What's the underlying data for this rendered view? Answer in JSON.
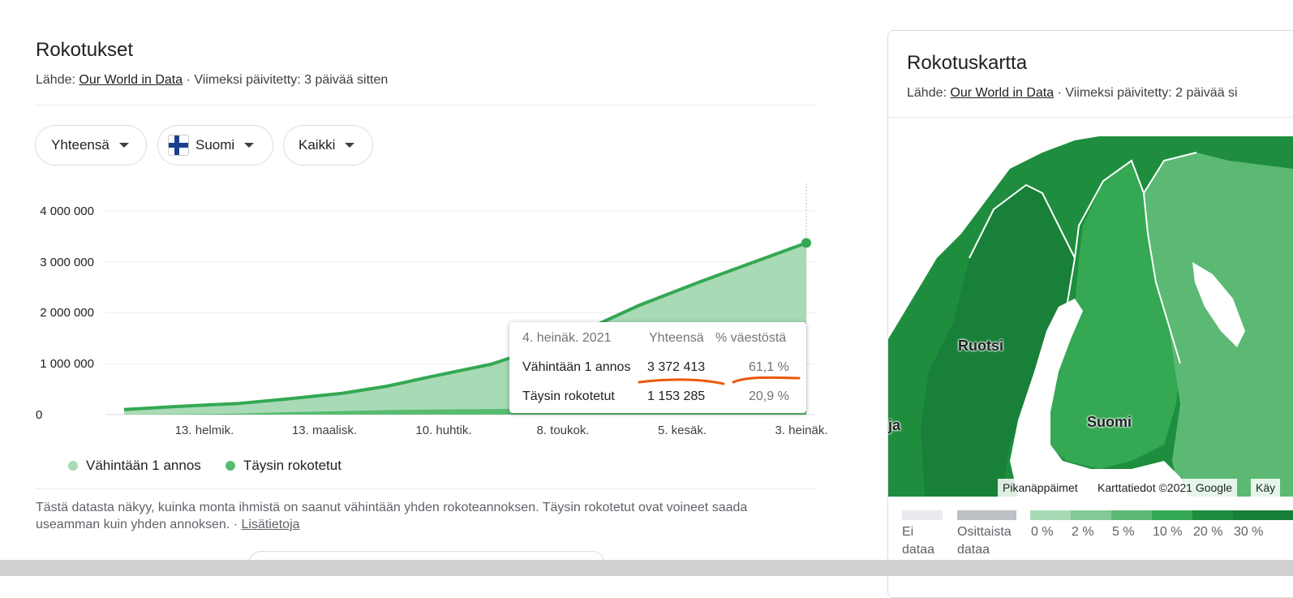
{
  "vaccinations": {
    "title": "Rokotukset",
    "source_prefix": "Lähde: ",
    "source_link": "Our World in Data",
    "updated": " · Viimeksi päivitetty: 3 päivää sitten",
    "filters": {
      "metric": "Yhteensä",
      "country": "Suomi",
      "group": "Kaikki"
    },
    "legend": {
      "series1": "Vähintään 1 annos",
      "series2": "Täysin rokotetut"
    },
    "tooltip": {
      "date": "4. heinäk. 2021",
      "col_total": "Yhteensä",
      "col_pct": "% väestöstä",
      "row1_label": "Vähintään 1 annos",
      "row1_total": "3 372 413",
      "row1_pct": "61,1 %",
      "row2_label": "Täysin rokotetut",
      "row2_total": "1 153 285",
      "row2_pct": "20,9 %"
    },
    "description": "Tästä datasta näkyy, kuinka monta ihmistä on saanut vähintään yhden rokoteannoksen. Täysin rokotetut ovat voineet saada useamman kuin yhden annoksen.",
    "desc_sep": " · ",
    "more_link": "Lisätietoja"
  },
  "chart_data": {
    "type": "area",
    "y_ticks": [
      "4 000 000",
      "3 000 000",
      "2 000 000",
      "1 000 000",
      "0"
    ],
    "x_ticks": [
      "13. helmik.",
      "13. maalisk.",
      "10. huhtik.",
      "8. toukok.",
      "5. kesäk.",
      "3. heinäk."
    ],
    "ylim": [
      0,
      4000000
    ],
    "x": [
      "2021-01-01",
      "2021-01-15",
      "2021-02-01",
      "2021-02-13",
      "2021-03-01",
      "2021-03-13",
      "2021-03-25",
      "2021-04-10",
      "2021-04-25",
      "2021-05-08",
      "2021-05-20",
      "2021-06-05",
      "2021-06-20",
      "2021-07-04"
    ],
    "series": [
      {
        "name": "Vähintään 1 annos",
        "color": "#a8dab5",
        "values": [
          100000,
          160000,
          220000,
          300000,
          420000,
          560000,
          750000,
          990000,
          1350000,
          1750000,
          2150000,
          2600000,
          3000000,
          3372413
        ]
      },
      {
        "name": "Täysin rokotetut",
        "color": "#57bb70",
        "values": [
          0,
          5000,
          20000,
          45000,
          70000,
          90000,
          100000,
          110000,
          120000,
          145000,
          190000,
          330000,
          700000,
          1153285
        ]
      }
    ],
    "line_color": "#34a853"
  },
  "map": {
    "title": "Rokotuskartta",
    "source_prefix": "Lähde: ",
    "source_link": "Our World in Data",
    "updated": " · Viimeksi päivitetty: 2 päivää si",
    "labels": {
      "sweden": "Ruotsi",
      "finland": "Suomi",
      "norway": "ja"
    },
    "attrib_shortcuts": "Pikanäppäimet",
    "attrib_data": "Karttatiedot ©2021 Google",
    "attrib_terms": "Käy",
    "scale": {
      "no_data": [
        "Ei",
        "dataa"
      ],
      "partial": [
        "Osittaista",
        "dataa"
      ],
      "steps": [
        "0 %",
        "2 %",
        "5 %",
        "10 %",
        "20 %",
        "30 %"
      ],
      "colors": [
        "#a8dab5",
        "#81c995",
        "#5bb974",
        "#34a853",
        "#1e8e3e",
        "#188038"
      ],
      "no_data_color": "#e8eaed",
      "partial_color": "#bdc1c6"
    }
  }
}
